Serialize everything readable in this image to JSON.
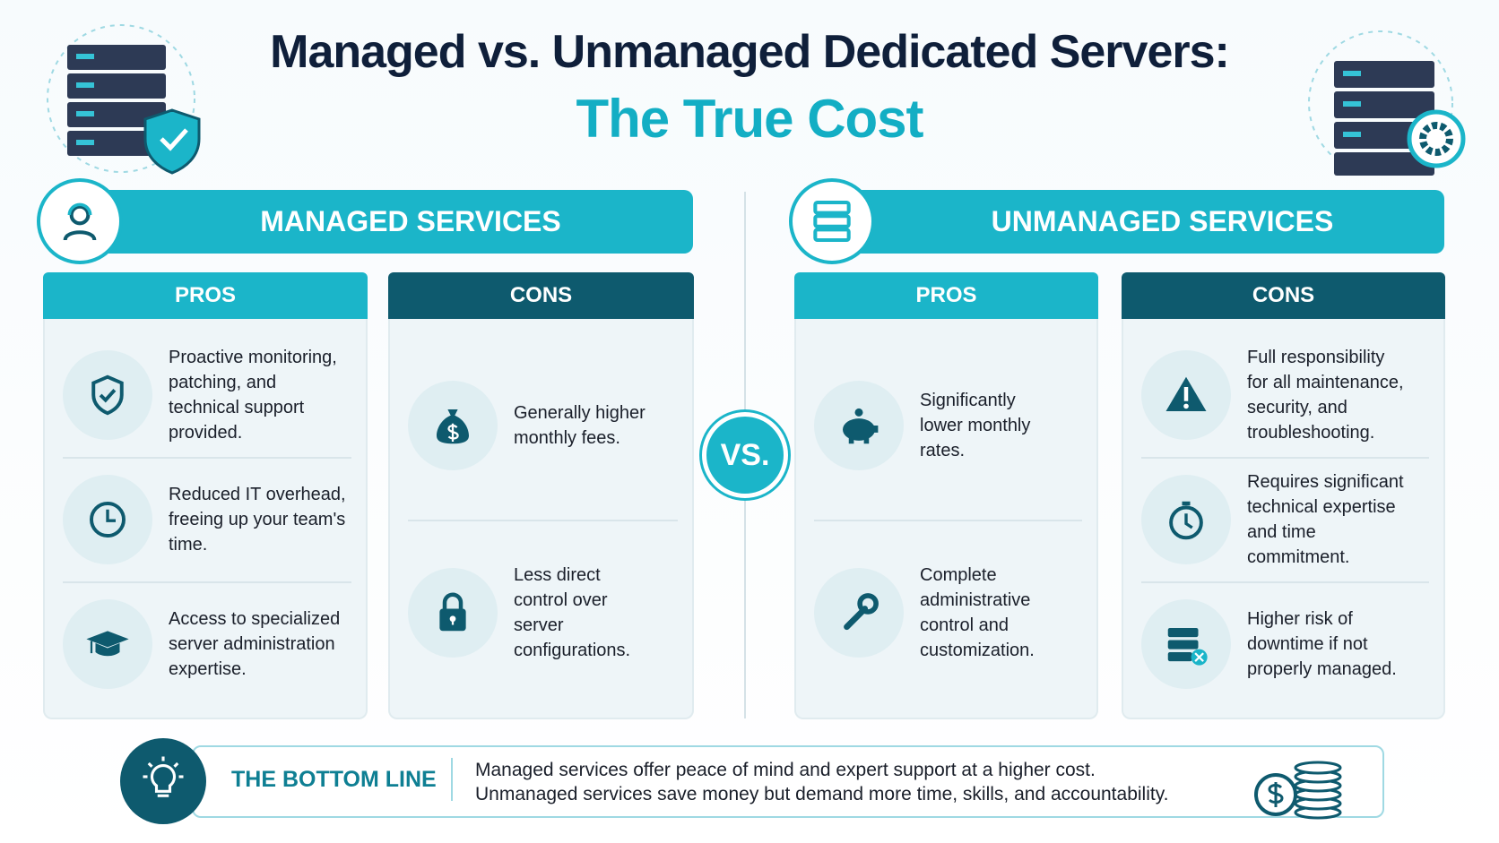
{
  "header": {
    "title_line1": "Managed vs. Unmanaged Dedicated Servers:",
    "title_line2": "The True Cost"
  },
  "sections": [
    {
      "title": "MANAGED SERVICES",
      "pros": {
        "heading": "PROS",
        "items": [
          "Proactive monitoring, patching, and technical support provided.",
          "Reduced IT overhead, freeing up your team's time.",
          "Access to specialized server administration expertise."
        ]
      },
      "cons": {
        "heading": "CONS",
        "items": [
          "Generally higher monthly fees.",
          "Less direct control over server configurations."
        ]
      }
    },
    {
      "title": "UNMANAGED SERVICES",
      "pros": {
        "heading": "PROS",
        "items": [
          "Significantly lower monthly rates.",
          "Complete administrative control and customization."
        ]
      },
      "cons": {
        "heading": "CONS",
        "items": [
          "Full responsibility for all maintenance, security, and troubleshooting.",
          "Requires significant technical expertise and time commitment.",
          "Higher risk of downtime if not properly managed."
        ]
      }
    }
  ],
  "vs": "VS.",
  "bottom_line": {
    "label": "THE BOTTOM LINE",
    "lines": [
      "Managed services offer peace of mind and expert support at a higher cost.",
      "Unmanaged services save money but demand more time, skills, and accountability."
    ]
  }
}
